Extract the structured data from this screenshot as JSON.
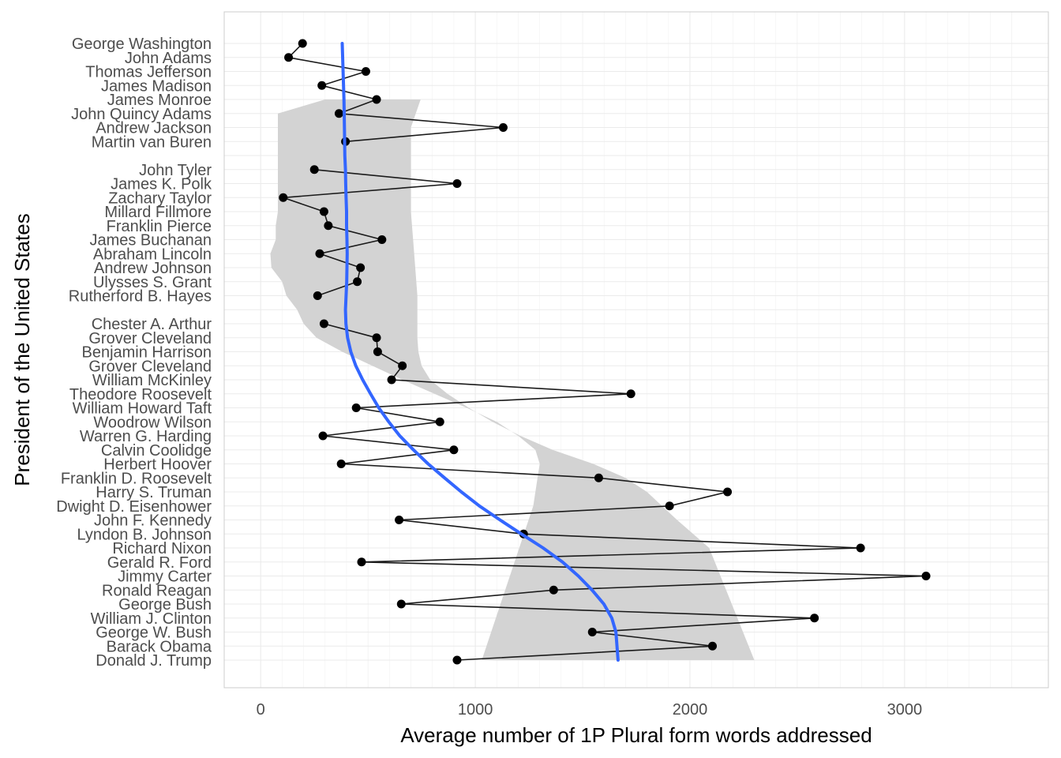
{
  "chart_data": {
    "type": "line",
    "title": "",
    "xlabel": "Average number of 1P Plural form words addressed",
    "ylabel": "President of the United States",
    "xlim": [
      -170,
      3670
    ],
    "x_ticks": [
      0,
      1000,
      2000,
      3000
    ],
    "grid": true,
    "legend": "none",
    "categories": [
      "George Washington",
      "John Adams",
      "Thomas Jefferson",
      "James Madison",
      "James Monroe",
      "John Quincy Adams",
      "Andrew Jackson",
      "Martin van Buren",
      "",
      "John Tyler",
      "James K. Polk",
      "Zachary Taylor",
      "Millard Fillmore",
      "Franklin Pierce",
      "James Buchanan",
      "Abraham Lincoln",
      "Andrew Johnson",
      "Ulysses S. Grant",
      "Rutherford B. Hayes",
      "",
      "Chester A. Arthur",
      "Grover Cleveland",
      "Benjamin Harrison",
      "Grover Cleveland",
      "William McKinley",
      "Theodore Roosevelt",
      "William Howard Taft",
      "Woodrow Wilson",
      "Warren G. Harding",
      "Calvin Coolidge",
      "Herbert Hoover",
      "Franklin D. Roosevelt",
      "Harry S. Truman",
      "Dwight D. Eisenhower",
      "John F. Kennedy",
      "Lyndon B. Johnson",
      "Richard Nixon",
      "Gerald R. Ford",
      "Jimmy Carter",
      "Ronald Reagan",
      "George Bush",
      "William J. Clinton",
      "George W. Bush",
      "Barack Obama",
      "Donald J. Trump"
    ],
    "values": [
      195,
      130,
      490,
      285,
      540,
      365,
      1130,
      395,
      null,
      250,
      915,
      105,
      295,
      315,
      565,
      275,
      465,
      450,
      265,
      null,
      295,
      540,
      545,
      660,
      610,
      1725,
      445,
      835,
      290,
      900,
      375,
      1575,
      2175,
      1905,
      645,
      1225,
      2795,
      470,
      3100,
      1365,
      655,
      2580,
      1545,
      2105,
      915
    ],
    "trend": {
      "x": [
        380,
        384,
        388,
        390,
        392,
        395,
        396,
        398,
        400,
        400,
        402,
        403,
        402,
        401,
        398,
        395,
        397,
        405,
        420,
        443,
        475,
        512,
        550,
        597,
        648,
        712,
        780,
        857,
        935,
        1019,
        1115,
        1215,
        1316,
        1406,
        1480,
        1544,
        1599,
        1636,
        1655,
        1665
      ],
      "y_index": [
        0,
        2,
        4,
        6,
        8,
        9,
        10,
        11,
        12,
        13,
        14,
        15,
        16,
        17,
        18,
        19,
        20,
        21,
        22,
        23,
        24,
        25,
        26,
        27,
        28,
        29,
        30,
        31,
        32,
        33,
        34,
        35,
        36,
        37,
        38,
        39,
        40,
        41,
        42,
        44
      ],
      "ci_low": [
        300,
        300,
        80,
        80,
        80,
        80,
        80,
        80,
        80,
        80,
        70,
        70,
        45,
        50,
        100,
        120,
        170,
        200,
        260,
        380,
        520,
        660,
        810,
        960,
        1100,
        1200,
        1280,
        1300,
        1290,
        1280,
        1270,
        1030
      ],
      "ci_high": [
        745,
        745,
        700,
        700,
        700,
        700,
        710,
        720,
        730,
        730,
        730,
        730,
        735,
        750,
        790,
        870,
        970,
        1080,
        1210,
        1360,
        1550,
        1700,
        1800,
        1870,
        1940,
        2090,
        2300
      ],
      "ci_low_y_index": [
        4,
        4,
        5,
        6,
        7,
        8,
        9,
        10,
        11,
        12,
        13,
        14,
        15,
        16,
        17,
        18,
        19,
        20,
        21,
        22,
        23,
        24,
        25,
        26,
        27,
        28,
        29,
        30,
        31,
        32,
        33,
        44
      ],
      "ci_high_y_index": [
        4,
        4,
        6,
        8,
        10,
        12,
        14,
        16,
        18,
        19,
        20,
        21,
        22,
        23,
        24,
        25,
        26,
        27,
        28,
        29,
        30,
        31,
        32,
        33,
        34,
        36,
        44
      ]
    },
    "colors": {
      "points": "#000000",
      "line": "#1a1a1a",
      "trend": "#3366ff",
      "ribbon": "#d3d3d3",
      "grid": "#ebebeb",
      "panel_border": "#cccccc"
    }
  }
}
